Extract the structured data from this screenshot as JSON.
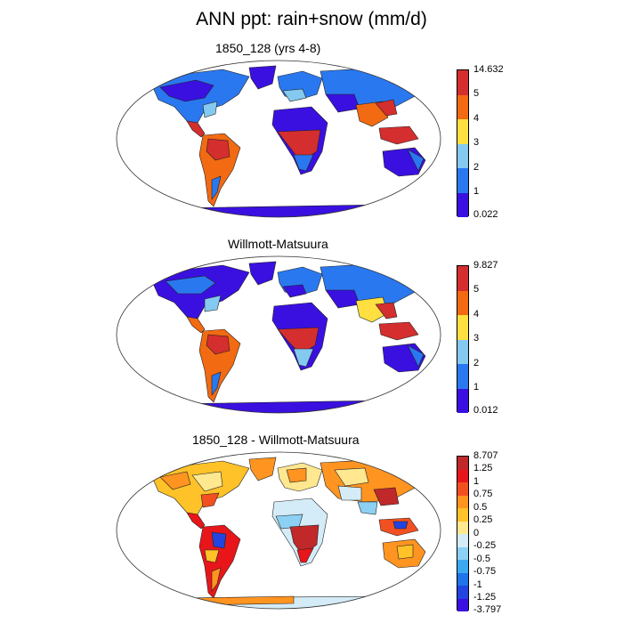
{
  "title": "ANN ppt: rain+snow (mm/d)",
  "panels": [
    {
      "title": "1850_128 (yrs 4-8)",
      "colorbar": {
        "labels": [
          "14.632",
          "5",
          "4",
          "3",
          "2",
          "1",
          "0.022"
        ],
        "colors": [
          "#d42e2e",
          "#f26a12",
          "#ffe040",
          "#84c9f0",
          "#2a78f0",
          "#3a10e0"
        ]
      }
    },
    {
      "title": "Willmott-Matsuura",
      "colorbar": {
        "labels": [
          "9.827",
          "5",
          "4",
          "3",
          "2",
          "1",
          "0.012"
        ],
        "colors": [
          "#d42e2e",
          "#f26a12",
          "#ffe040",
          "#84c9f0",
          "#2a78f0",
          "#3a10e0"
        ]
      }
    },
    {
      "title": "1850_128 - Willmott-Matsuura",
      "colorbar": {
        "labels": [
          "8.707",
          "1.25",
          "1",
          "0.75",
          "0.5",
          "0.25",
          "0",
          "-0.25",
          "-0.5",
          "-0.75",
          "-1",
          "-1.25",
          "-3.797"
        ],
        "colors": [
          "#c0282a",
          "#e8161a",
          "#f25020",
          "#ff9420",
          "#ffc228",
          "#ffe890",
          "#d4ecf8",
          "#8cd0f4",
          "#3caaf0",
          "#1e74e8",
          "#2244e0",
          "#3a10e0"
        ]
      }
    }
  ]
}
